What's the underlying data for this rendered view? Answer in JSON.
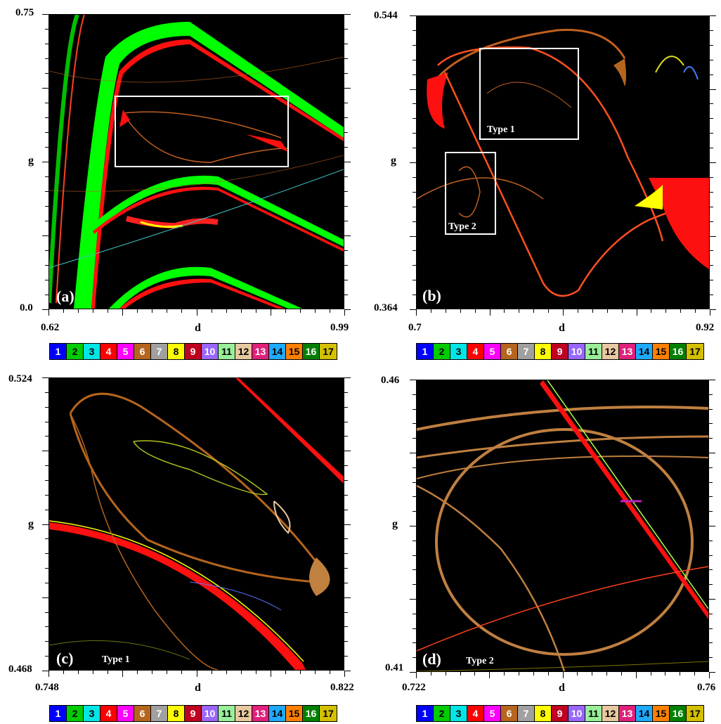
{
  "chart_data": [
    {
      "type": "heatmap",
      "panel_label": "(a)",
      "xlabel": "d",
      "ylabel": "g",
      "xlim": [
        0.62,
        0.99
      ],
      "ylim": [
        0.0,
        0.75
      ],
      "x_ticks": [
        "0.62",
        "d",
        "0.99"
      ],
      "y_ticks": [
        "0.75",
        "g",
        "0.0"
      ],
      "inset_boxes": []
    },
    {
      "type": "heatmap",
      "panel_label": "(b)",
      "xlabel": "d",
      "ylabel": "g",
      "xlim": [
        0.7,
        0.92
      ],
      "ylim": [
        0.364,
        0.544
      ],
      "x_ticks": [
        "0.7",
        "d",
        "0.92"
      ],
      "y_ticks": [
        "0.544",
        "g",
        "0.364"
      ],
      "inset_boxes": [
        "Type 1",
        "Type 2"
      ]
    },
    {
      "type": "heatmap",
      "panel_label": "(c)",
      "annotation": "Type 1",
      "xlabel": "d",
      "ylabel": "g",
      "xlim": [
        0.748,
        0.822
      ],
      "ylim": [
        0.468,
        0.524
      ],
      "x_ticks": [
        "0.748",
        "d",
        "0.822"
      ],
      "y_ticks": [
        "0.524",
        "g",
        "0.468"
      ]
    },
    {
      "type": "heatmap",
      "panel_label": "(d)",
      "annotation": "Type 2",
      "xlabel": "d",
      "ylabel": "g",
      "xlim": [
        0.722,
        0.76
      ],
      "ylim": [
        0.41,
        0.46
      ],
      "x_ticks": [
        "0.722",
        "d",
        "0.76"
      ],
      "y_ticks": [
        "0.46",
        "g",
        "0.41"
      ]
    }
  ],
  "colorbar": {
    "labels": [
      "1",
      "2",
      "3",
      "4",
      "5",
      "6",
      "7",
      "8",
      "9",
      "10",
      "11",
      "12",
      "13",
      "14",
      "15",
      "16",
      "17"
    ],
    "colors": [
      "#0000ff",
      "#00cc00",
      "#00e5e5",
      "#ff0000",
      "#ff00ff",
      "#b5651d",
      "#a0a0a0",
      "#ffff00",
      "#c00020",
      "#9966ff",
      "#99ee99",
      "#e8c8a0",
      "#e0207a",
      "#1eaaff",
      "#ff8000",
      "#008000",
      "#d4c000"
    ],
    "text_colors": [
      "#fff",
      "#000",
      "#000",
      "#fff",
      "#fff",
      "#fff",
      "#fff",
      "#000",
      "#fff",
      "#fff",
      "#000",
      "#000",
      "#fff",
      "#000",
      "#000",
      "#fff",
      "#000"
    ]
  }
}
